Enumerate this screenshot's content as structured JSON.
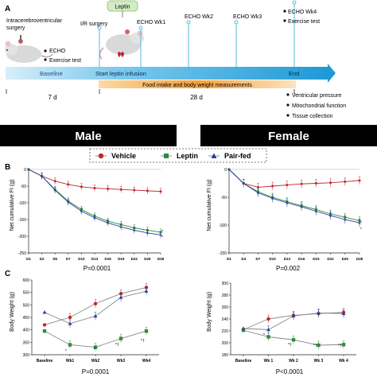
{
  "panel_a": {
    "letter": "A",
    "surgery_line1": "Intracerebroventricular",
    "surgery_line2": "surgery",
    "leptin_box": "Leptin",
    "ir_surgery": "I/R surgery",
    "echo_wk1": "ECHO Wk1",
    "echo_wk2": "ECHO Wk2",
    "echo_wk3": "ECHO Wk3",
    "echo_wk4": "ECHO Wk4",
    "exercise_test_top": "Exercise test",
    "baseline_echo": "ECHO",
    "baseline_exercise": "Exercise test",
    "baseline_label": "Baseline",
    "start_label": "Start leptin infusion",
    "end_label": "End",
    "food_bar": "Food intake and body weight measurements",
    "dur_7d": "7 d",
    "dur_28d": "28 d",
    "end_items": [
      "Ventricular pressure",
      "Mitochondrial function",
      "Tissue collection"
    ]
  },
  "banners": {
    "male": "Male",
    "female": "Female"
  },
  "legend": {
    "vehicle": "Vehicle",
    "leptin": "Leptin",
    "pairfed": "Pair-fed"
  },
  "colors": {
    "vehicle": "#c0272d",
    "leptin": "#2e8b3a",
    "pairfed": "#2b3f9e",
    "accent_blue": "#2aa9e0",
    "orange": "#f7a23b"
  },
  "panel_b": {
    "letter": "B",
    "ylabel": "Net cumulative FI (g)",
    "male": {
      "pvalue": "P=0.0001",
      "ticks_y": [
        "0",
        "-50",
        "-100",
        "-150",
        "-200",
        "-250"
      ],
      "ticks_x": [
        "D1",
        "D2",
        "D5",
        "D7",
        "D10",
        "D13",
        "D16",
        "D19",
        "D22",
        "D25",
        "D28"
      ]
    },
    "female": {
      "pvalue": "P=0.002",
      "ticks_y": [
        "0",
        "-50",
        "-100",
        "-150"
      ],
      "ticks_x": [
        "D1",
        "D4",
        "D7",
        "D10",
        "D13",
        "D16",
        "D19",
        "D22",
        "D25",
        "D28"
      ]
    }
  },
  "panel_c": {
    "letter": "C",
    "ylabel": "Body Weight (g)",
    "male": {
      "pvalue": "P=0.0001",
      "ticks_y": [
        "600",
        "550",
        "500",
        "450",
        "400",
        "350",
        "300"
      ],
      "ticks_x": [
        "Baseline",
        "Wk1",
        "Wk2",
        "Wk3",
        "Wk4"
      ]
    },
    "female": {
      "pvalue": "P<0.0001",
      "ticks_y": [
        "300",
        "280",
        "260",
        "240",
        "220",
        "200",
        "180"
      ],
      "ticks_x": [
        "Baseline",
        "Wk 1",
        "Wk 2",
        "Wk 3",
        "Wk 4"
      ]
    }
  },
  "chart_data": [
    {
      "type": "line",
      "title": "",
      "ylabel": "Net cumulative FI (g)",
      "categories": [
        "D1",
        "D2",
        "D5",
        "D7",
        "D10",
        "D13",
        "D16",
        "D19",
        "D22",
        "D25",
        "D28"
      ],
      "ylim": [
        -250,
        0
      ],
      "series": [
        {
          "name": "Vehicle",
          "values": [
            0,
            -20,
            -35,
            -45,
            -52,
            -56,
            -58,
            -60,
            -62,
            -64,
            -66
          ]
        },
        {
          "name": "Leptin",
          "values": [
            0,
            -20,
            -60,
            -95,
            -120,
            -140,
            -155,
            -165,
            -175,
            -182,
            -188
          ]
        },
        {
          "name": "Pair-fed",
          "values": [
            0,
            -20,
            -62,
            -98,
            -125,
            -145,
            -160,
            -172,
            -182,
            -190,
            -196
          ]
        }
      ]
    },
    {
      "type": "line",
      "title": "",
      "ylabel": "Net cumulative FI (g)",
      "categories": [
        "D1",
        "D4",
        "D7",
        "D10",
        "D13",
        "D16",
        "D19",
        "D22",
        "D25",
        "D28"
      ],
      "ylim": [
        -150,
        0
      ],
      "series": [
        {
          "name": "Vehicle",
          "values": [
            0,
            -25,
            -32,
            -30,
            -28,
            -26,
            -25,
            -24,
            -22,
            -20
          ]
        },
        {
          "name": "Leptin",
          "values": [
            0,
            -25,
            -40,
            -50,
            -58,
            -65,
            -72,
            -80,
            -86,
            -92
          ]
        },
        {
          "name": "Pair-fed",
          "values": [
            0,
            -25,
            -42,
            -52,
            -60,
            -67,
            -75,
            -83,
            -90,
            -96
          ]
        }
      ]
    },
    {
      "type": "line",
      "title": "",
      "ylabel": "Body Weight (g)",
      "categories": [
        "Baseline",
        "Wk1",
        "Wk2",
        "Wk3",
        "Wk4"
      ],
      "ylim": [
        300,
        600
      ],
      "series": [
        {
          "name": "Vehicle",
          "values": [
            420,
            450,
            505,
            545,
            570
          ]
        },
        {
          "name": "Leptin",
          "values": [
            395,
            340,
            330,
            365,
            395
          ]
        },
        {
          "name": "Pair-fed",
          "values": [
            470,
            425,
            455,
            530,
            555
          ]
        }
      ]
    },
    {
      "type": "line",
      "title": "",
      "ylabel": "Body Weight (g)",
      "categories": [
        "Baseline",
        "Wk 1",
        "Wk 2",
        "Wk 3",
        "Wk 4"
      ],
      "ylim": [
        180,
        300
      ],
      "series": [
        {
          "name": "Vehicle",
          "values": [
            222,
            240,
            246,
            249,
            251
          ]
        },
        {
          "name": "Leptin",
          "values": [
            221,
            210,
            205,
            196,
            197
          ]
        },
        {
          "name": "Pair-fed",
          "values": [
            224,
            222,
            245,
            250,
            249
          ]
        }
      ]
    }
  ]
}
